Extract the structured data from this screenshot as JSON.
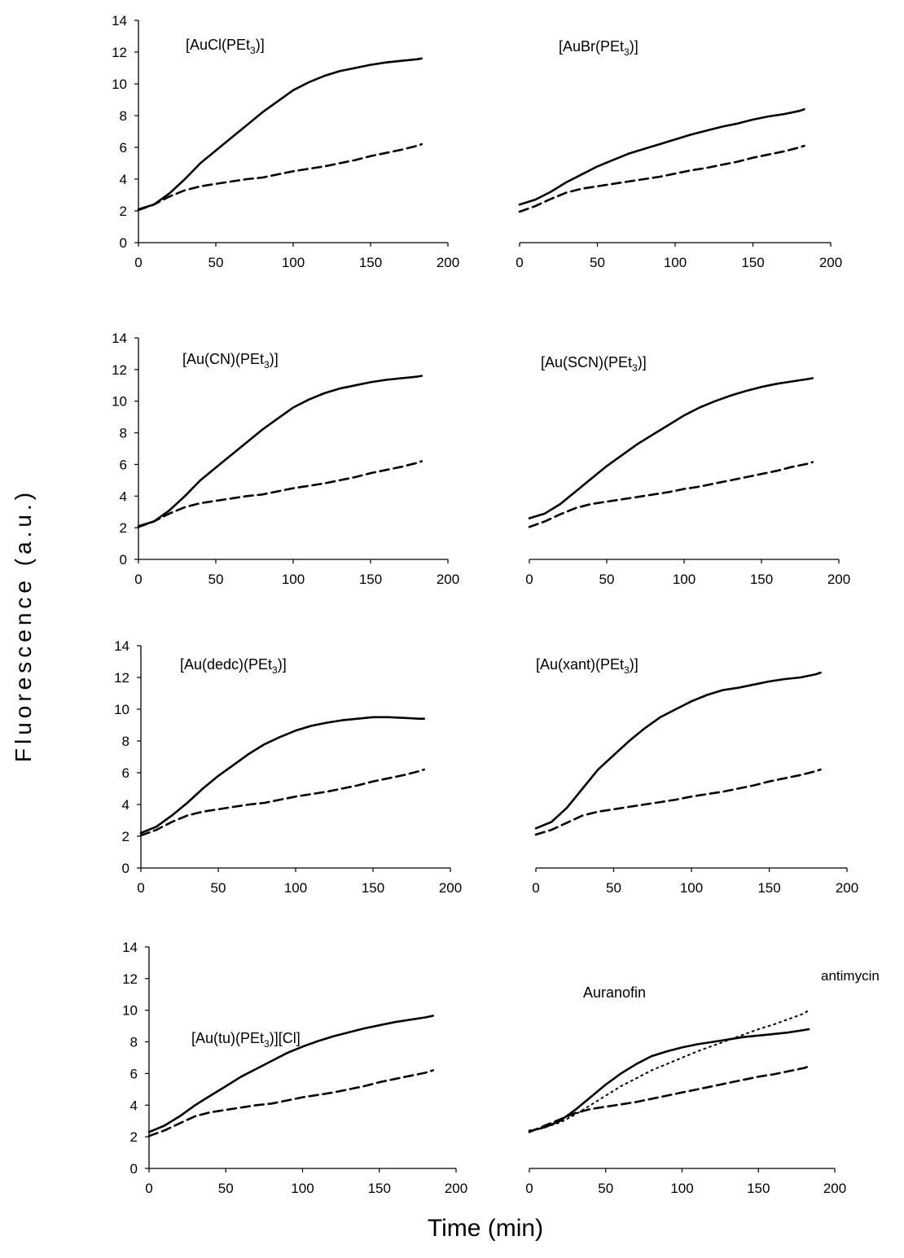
{
  "y_axis_label": "Fluorescence  (a.u.)",
  "x_axis_label": "Time (min)",
  "chart_data": [
    {
      "type": "line",
      "title": "[AuCl(PEt",
      "title_sub": "3",
      "title_end": ")]",
      "xlim": [
        0,
        200
      ],
      "ylim": [
        0,
        14
      ],
      "xticks": [
        "0",
        "50",
        "100",
        "150",
        "200"
      ],
      "yticks": [
        "0",
        "2",
        "4",
        "6",
        "8",
        "10",
        "12",
        "14"
      ],
      "series": [
        {
          "style": "solid",
          "x": [
            0,
            10,
            20,
            30,
            40,
            50,
            60,
            70,
            80,
            90,
            100,
            110,
            120,
            130,
            140,
            150,
            160,
            170,
            180,
            183
          ],
          "y": [
            2.1,
            2.4,
            3.1,
            4.0,
            5.0,
            5.8,
            6.6,
            7.4,
            8.2,
            8.9,
            9.6,
            10.1,
            10.5,
            10.8,
            11.0,
            11.2,
            11.35,
            11.45,
            11.55,
            11.6
          ]
        },
        {
          "style": "dashed",
          "x": [
            0,
            10,
            20,
            30,
            40,
            50,
            60,
            70,
            80,
            90,
            100,
            110,
            120,
            130,
            140,
            150,
            160,
            170,
            180,
            183
          ],
          "y": [
            2.05,
            2.4,
            2.9,
            3.3,
            3.55,
            3.7,
            3.85,
            4.0,
            4.1,
            4.3,
            4.5,
            4.65,
            4.8,
            5.0,
            5.2,
            5.45,
            5.65,
            5.85,
            6.1,
            6.2
          ]
        }
      ]
    },
    {
      "type": "line",
      "title": "[AuBr(PEt",
      "title_sub": "3",
      "title_end": ")]",
      "xlim": [
        0,
        200
      ],
      "ylim": [
        0,
        14
      ],
      "xticks": [
        "0",
        "50",
        "100",
        "150",
        "200"
      ],
      "yticks": [],
      "series": [
        {
          "style": "solid",
          "x": [
            0,
            10,
            20,
            30,
            40,
            50,
            60,
            70,
            80,
            90,
            100,
            110,
            120,
            130,
            140,
            150,
            160,
            170,
            180,
            183
          ],
          "y": [
            2.4,
            2.7,
            3.2,
            3.8,
            4.3,
            4.8,
            5.2,
            5.6,
            5.9,
            6.2,
            6.5,
            6.8,
            7.05,
            7.3,
            7.5,
            7.75,
            7.95,
            8.1,
            8.3,
            8.4
          ]
        },
        {
          "style": "dashed",
          "x": [
            0,
            10,
            20,
            30,
            40,
            50,
            60,
            70,
            80,
            90,
            100,
            110,
            120,
            130,
            140,
            150,
            160,
            170,
            180,
            183
          ],
          "y": [
            1.95,
            2.3,
            2.75,
            3.15,
            3.4,
            3.55,
            3.7,
            3.85,
            4.0,
            4.15,
            4.35,
            4.55,
            4.7,
            4.9,
            5.1,
            5.35,
            5.55,
            5.75,
            6.0,
            6.1
          ]
        }
      ]
    },
    {
      "type": "line",
      "title": "[Au(CN)(PEt",
      "title_sub": "3",
      "title_end": ")]",
      "xlim": [
        0,
        200
      ],
      "ylim": [
        0,
        14
      ],
      "xticks": [
        "0",
        "50",
        "100",
        "150",
        "200"
      ],
      "yticks": [
        "0",
        "2",
        "4",
        "6",
        "8",
        "10",
        "12",
        "14"
      ],
      "series": [
        {
          "style": "solid",
          "x": [
            0,
            10,
            20,
            30,
            40,
            50,
            60,
            70,
            80,
            90,
            100,
            110,
            120,
            130,
            140,
            150,
            160,
            170,
            180,
            183
          ],
          "y": [
            2.1,
            2.4,
            3.1,
            4.0,
            5.0,
            5.8,
            6.6,
            7.4,
            8.2,
            8.9,
            9.6,
            10.1,
            10.5,
            10.8,
            11.0,
            11.2,
            11.35,
            11.45,
            11.55,
            11.6
          ]
        },
        {
          "style": "dashed",
          "x": [
            0,
            10,
            20,
            30,
            40,
            50,
            60,
            70,
            80,
            90,
            100,
            110,
            120,
            130,
            140,
            150,
            160,
            170,
            180,
            183
          ],
          "y": [
            2.05,
            2.4,
            2.9,
            3.3,
            3.55,
            3.7,
            3.85,
            4.0,
            4.1,
            4.3,
            4.5,
            4.65,
            4.8,
            5.0,
            5.2,
            5.45,
            5.65,
            5.85,
            6.1,
            6.2
          ]
        }
      ]
    },
    {
      "type": "line",
      "title": "[Au(SCN)(PEt",
      "title_sub": "3",
      "title_end": ")]",
      "xlim": [
        0,
        200
      ],
      "ylim": [
        0,
        14
      ],
      "xticks": [
        "0",
        "50",
        "100",
        "150",
        "200"
      ],
      "yticks": [],
      "series": [
        {
          "style": "solid",
          "x": [
            0,
            10,
            20,
            30,
            40,
            50,
            60,
            70,
            80,
            90,
            100,
            110,
            120,
            130,
            140,
            150,
            160,
            170,
            180,
            183
          ],
          "y": [
            2.6,
            2.9,
            3.5,
            4.3,
            5.1,
            5.9,
            6.6,
            7.3,
            7.9,
            8.5,
            9.1,
            9.6,
            10.0,
            10.35,
            10.65,
            10.9,
            11.1,
            11.25,
            11.4,
            11.45
          ]
        },
        {
          "style": "dashed",
          "x": [
            0,
            10,
            20,
            30,
            40,
            50,
            60,
            70,
            80,
            90,
            100,
            110,
            120,
            130,
            140,
            150,
            160,
            170,
            180,
            183
          ],
          "y": [
            2.05,
            2.4,
            2.85,
            3.25,
            3.5,
            3.65,
            3.8,
            3.95,
            4.1,
            4.25,
            4.45,
            4.6,
            4.8,
            5.0,
            5.2,
            5.4,
            5.6,
            5.85,
            6.05,
            6.15
          ]
        }
      ]
    },
    {
      "type": "line",
      "title": "[Au(dedc)(PEt",
      "title_sub": "3",
      "title_end": ")]",
      "xlim": [
        0,
        200
      ],
      "ylim": [
        0,
        14
      ],
      "xticks": [
        "0",
        "50",
        "100",
        "150",
        "200"
      ],
      "yticks": [
        "0",
        "2",
        "4",
        "6",
        "8",
        "10",
        "12",
        "14"
      ],
      "series": [
        {
          "style": "solid",
          "x": [
            0,
            10,
            20,
            30,
            40,
            50,
            60,
            70,
            80,
            90,
            100,
            110,
            120,
            130,
            140,
            150,
            160,
            170,
            180,
            183
          ],
          "y": [
            2.2,
            2.6,
            3.3,
            4.1,
            5.0,
            5.8,
            6.5,
            7.2,
            7.8,
            8.25,
            8.65,
            8.95,
            9.15,
            9.3,
            9.4,
            9.5,
            9.5,
            9.45,
            9.4,
            9.4
          ]
        },
        {
          "style": "dashed",
          "x": [
            0,
            10,
            20,
            30,
            40,
            50,
            60,
            70,
            80,
            90,
            100,
            110,
            120,
            130,
            140,
            150,
            160,
            170,
            180,
            183
          ],
          "y": [
            2.05,
            2.4,
            2.9,
            3.3,
            3.55,
            3.7,
            3.85,
            4.0,
            4.1,
            4.3,
            4.5,
            4.65,
            4.8,
            5.0,
            5.2,
            5.45,
            5.65,
            5.85,
            6.1,
            6.2
          ]
        }
      ]
    },
    {
      "type": "line",
      "title": "[Au(xant)(PEt",
      "title_sub": "3",
      "title_end": ")]",
      "xlim": [
        0,
        200
      ],
      "ylim": [
        0,
        14
      ],
      "xticks": [
        "0",
        "50",
        "100",
        "150",
        "200"
      ],
      "yticks": [],
      "series": [
        {
          "style": "solid",
          "x": [
            0,
            10,
            20,
            30,
            40,
            50,
            60,
            70,
            80,
            90,
            100,
            110,
            120,
            130,
            140,
            150,
            160,
            170,
            180,
            183
          ],
          "y": [
            2.5,
            2.9,
            3.8,
            5.0,
            6.2,
            7.1,
            8.0,
            8.8,
            9.5,
            10.0,
            10.5,
            10.9,
            11.2,
            11.35,
            11.55,
            11.75,
            11.9,
            12.0,
            12.2,
            12.3
          ]
        },
        {
          "style": "dashed",
          "x": [
            0,
            10,
            20,
            30,
            40,
            50,
            60,
            70,
            80,
            90,
            100,
            110,
            120,
            130,
            140,
            150,
            160,
            170,
            180,
            183
          ],
          "y": [
            2.1,
            2.4,
            2.85,
            3.3,
            3.55,
            3.7,
            3.85,
            4.0,
            4.15,
            4.3,
            4.5,
            4.65,
            4.8,
            5.0,
            5.2,
            5.45,
            5.65,
            5.85,
            6.1,
            6.2
          ]
        }
      ]
    },
    {
      "type": "line",
      "title": "[Au(tu)(PEt",
      "title_sub": "3",
      "title_end": ")][Cl]",
      "xlim": [
        0,
        200
      ],
      "ylim": [
        0,
        14
      ],
      "xticks": [
        "0",
        "50",
        "100",
        "150",
        "200"
      ],
      "yticks": [
        "0",
        "2",
        "4",
        "6",
        "8",
        "10",
        "12",
        "14"
      ],
      "series": [
        {
          "style": "solid",
          "x": [
            0,
            10,
            20,
            30,
            40,
            50,
            60,
            70,
            80,
            90,
            100,
            110,
            120,
            130,
            140,
            150,
            160,
            170,
            180,
            185
          ],
          "y": [
            2.3,
            2.7,
            3.3,
            4.0,
            4.6,
            5.2,
            5.8,
            6.3,
            6.8,
            7.3,
            7.7,
            8.05,
            8.35,
            8.6,
            8.85,
            9.05,
            9.25,
            9.4,
            9.55,
            9.65
          ]
        },
        {
          "style": "dashed",
          "x": [
            0,
            10,
            20,
            30,
            40,
            50,
            60,
            70,
            80,
            90,
            100,
            110,
            120,
            130,
            140,
            150,
            160,
            170,
            180,
            185
          ],
          "y": [
            2.05,
            2.4,
            2.85,
            3.3,
            3.55,
            3.7,
            3.85,
            4.0,
            4.1,
            4.3,
            4.5,
            4.65,
            4.8,
            5.0,
            5.2,
            5.45,
            5.65,
            5.85,
            6.05,
            6.2
          ]
        }
      ]
    },
    {
      "type": "line",
      "title": "Auranofin",
      "title_sub": "",
      "title_end": "",
      "xlim": [
        0,
        200
      ],
      "ylim": [
        0,
        14
      ],
      "xticks": [
        "0",
        "50",
        "100",
        "150",
        "200"
      ],
      "yticks": [],
      "annotation": "antimycin",
      "series": [
        {
          "style": "solid",
          "x": [
            0,
            10,
            20,
            30,
            40,
            50,
            60,
            70,
            80,
            90,
            100,
            110,
            120,
            130,
            140,
            150,
            160,
            170,
            180,
            183
          ],
          "y": [
            2.35,
            2.6,
            3.0,
            3.7,
            4.5,
            5.3,
            6.0,
            6.6,
            7.1,
            7.4,
            7.65,
            7.85,
            8.0,
            8.15,
            8.3,
            8.4,
            8.5,
            8.6,
            8.75,
            8.8
          ]
        },
        {
          "style": "dashed",
          "x": [
            0,
            10,
            20,
            30,
            40,
            50,
            60,
            70,
            80,
            90,
            100,
            110,
            120,
            130,
            140,
            150,
            160,
            170,
            180,
            183
          ],
          "y": [
            2.3,
            2.7,
            3.1,
            3.5,
            3.75,
            3.9,
            4.05,
            4.2,
            4.4,
            4.6,
            4.8,
            5.0,
            5.2,
            5.4,
            5.6,
            5.8,
            5.95,
            6.15,
            6.35,
            6.45
          ]
        },
        {
          "style": "dotted",
          "x": [
            0,
            10,
            20,
            30,
            40,
            50,
            60,
            70,
            80,
            90,
            100,
            110,
            120,
            130,
            140,
            150,
            160,
            170,
            180,
            183
          ],
          "y": [
            2.4,
            2.6,
            2.9,
            3.4,
            4.0,
            4.6,
            5.2,
            5.7,
            6.2,
            6.6,
            7.0,
            7.4,
            7.75,
            8.1,
            8.45,
            8.8,
            9.1,
            9.45,
            9.8,
            10.0
          ]
        }
      ]
    }
  ]
}
